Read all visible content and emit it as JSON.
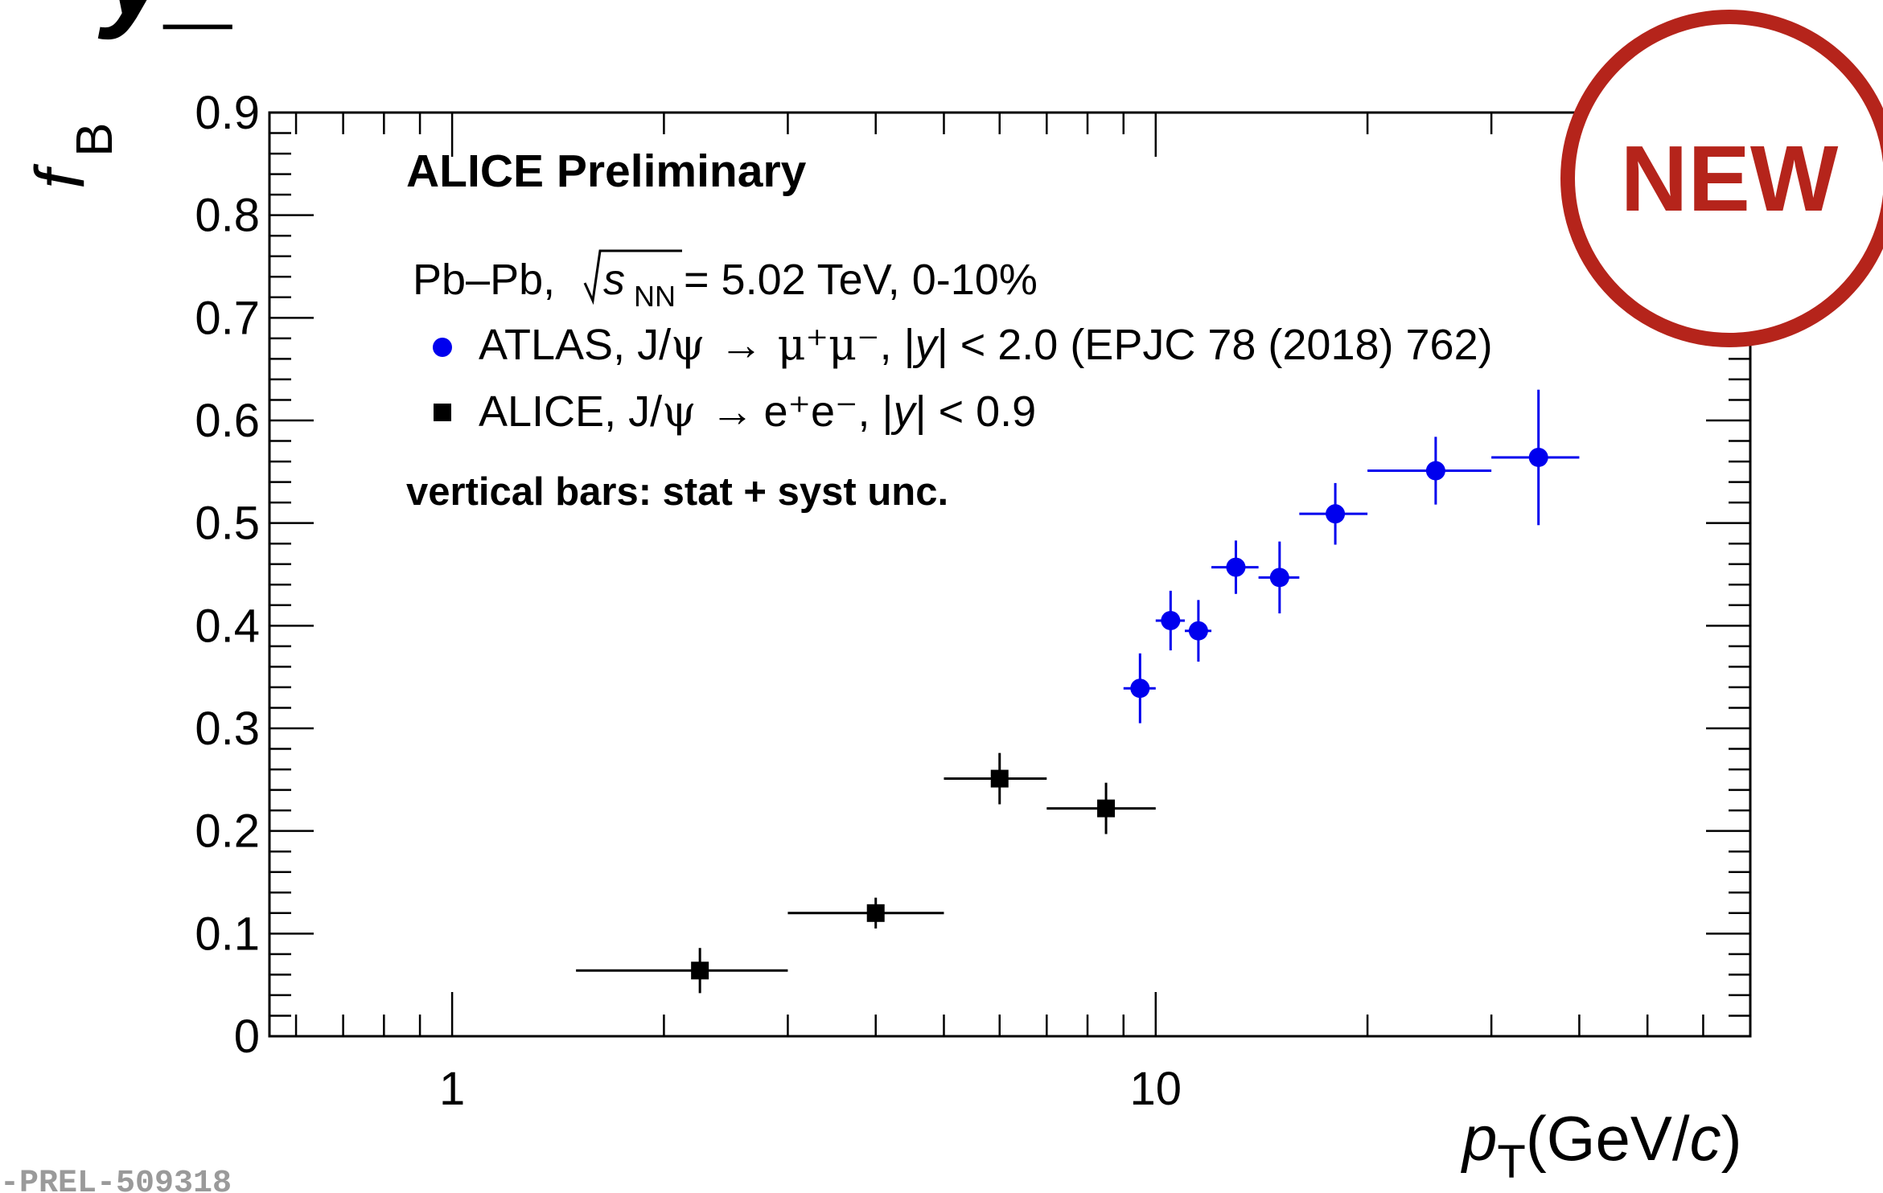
{
  "top_partial_text": "y_",
  "new_badge": {
    "label": "NEW",
    "color": "#b5241b"
  },
  "footer_id": "-PREL-509318",
  "annotations": {
    "title": "ALICE Preliminary",
    "system_prefix": "Pb–Pb, ",
    "sqrt": "s",
    "sqrt_sub": "NN",
    "system_suffix": " = 5.02 TeV, 0-10%",
    "note": "vertical bars: stat + syst unc."
  },
  "chart_data": {
    "type": "scatter",
    "xlabel": {
      "var": "p",
      "sub": "T",
      "unit_open": "(GeV/",
      "unit_c": "c",
      "unit_close": ")"
    },
    "ylabel": {
      "var": "f",
      "sub": "B"
    },
    "xscale": "log",
    "xlim": [
      0.55,
      70
    ],
    "ylim": [
      0,
      0.9
    ],
    "x_ticklabels": [
      "1",
      "10"
    ],
    "y_ticklabels": [
      "0",
      "0.1",
      "0.2",
      "0.3",
      "0.4",
      "0.5",
      "0.6",
      "0.7",
      "0.8",
      "0.9"
    ],
    "series": [
      {
        "name": "ATLAS",
        "legend": {
          "prefix": "ATLAS, J/",
          "psi": "ψ",
          "arrow": "→",
          "prod": "μ⁺μ⁻",
          "cut_pre": ", |",
          "y": "y",
          "cut_post": "| < 2.0 (EPJC 78 (2018) 762)"
        },
        "marker": "circle",
        "color": "#0000ee",
        "points": [
          {
            "x": 9.5,
            "xlo": 9.0,
            "xhi": 10.0,
            "y": 0.339,
            "yerr": 0.034
          },
          {
            "x": 10.5,
            "xlo": 10.0,
            "xhi": 11.0,
            "y": 0.405,
            "yerr": 0.029
          },
          {
            "x": 11.5,
            "xlo": 11.0,
            "xhi": 12.0,
            "y": 0.395,
            "yerr": 0.03
          },
          {
            "x": 13.0,
            "xlo": 12.0,
            "xhi": 14.0,
            "y": 0.457,
            "yerr": 0.026
          },
          {
            "x": 15.0,
            "xlo": 14.0,
            "xhi": 16.0,
            "y": 0.447,
            "yerr": 0.035
          },
          {
            "x": 18.0,
            "xlo": 16.0,
            "xhi": 20.0,
            "y": 0.509,
            "yerr": 0.03
          },
          {
            "x": 25.0,
            "xlo": 20.0,
            "xhi": 30.0,
            "y": 0.551,
            "yerr": 0.033
          },
          {
            "x": 35.0,
            "xlo": 30.0,
            "xhi": 40.0,
            "y": 0.564,
            "yerr": 0.066
          }
        ]
      },
      {
        "name": "ALICE",
        "legend": {
          "prefix": "ALICE,  J/",
          "psi": "ψ",
          "arrow": "→",
          "prod": "e⁺e⁻",
          "cut_pre": ", |",
          "y": "y",
          "cut_post": "| < 0.9"
        },
        "marker": "square",
        "color": "#000000",
        "points": [
          {
            "x": 2.25,
            "xlo": 1.5,
            "xhi": 3.0,
            "y": 0.064,
            "yerr": 0.022
          },
          {
            "x": 4.0,
            "xlo": 3.0,
            "xhi": 5.0,
            "y": 0.12,
            "yerr": 0.015
          },
          {
            "x": 6.0,
            "xlo": 5.0,
            "xhi": 7.0,
            "y": 0.251,
            "yerr": 0.025
          },
          {
            "x": 8.5,
            "xlo": 7.0,
            "xhi": 10.0,
            "y": 0.222,
            "yerr": 0.025
          }
        ]
      }
    ]
  }
}
